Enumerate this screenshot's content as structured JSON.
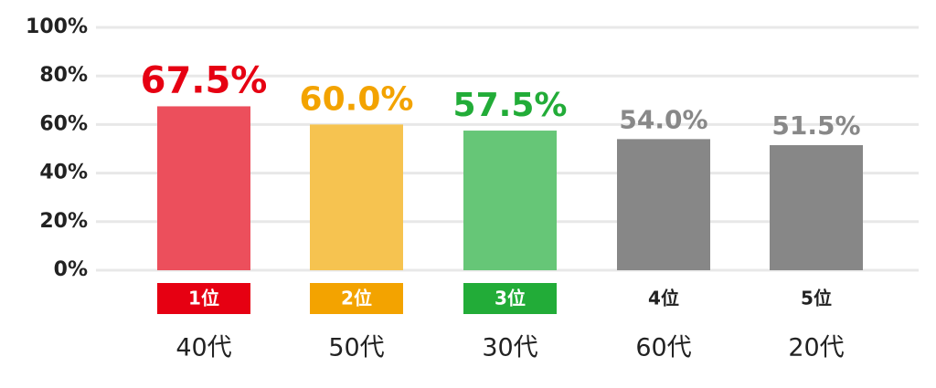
{
  "chart_data": {
    "type": "bar",
    "categories": [
      "40代",
      "50代",
      "30代",
      "60代",
      "20代"
    ],
    "values": [
      67.5,
      60.0,
      57.5,
      54.0,
      51.5
    ],
    "value_labels": [
      "67.5%",
      "60.0%",
      "57.5%",
      "54.0%",
      "51.5%"
    ],
    "colors": [
      "#ec4f5c",
      "#f6c350",
      "#66c677",
      "#878787",
      "#878787"
    ],
    "label_colors": [
      "#e60012",
      "#f3a300",
      "#22ac38",
      "#888888",
      "#888888"
    ],
    "rank_labels": [
      "1位",
      "2位",
      "3位",
      "4位",
      "5位"
    ],
    "rank_colors": [
      "#e60012",
      "#f3a300",
      "#22ac38",
      null,
      null
    ],
    "ylim": [
      0,
      100
    ],
    "yticks": [
      {
        "value": 0,
        "label": "0%"
      },
      {
        "value": 20,
        "label": "20%"
      },
      {
        "value": 40,
        "label": "40%"
      },
      {
        "value": 60,
        "label": "60%"
      },
      {
        "value": 80,
        "label": "80%"
      },
      {
        "value": 100,
        "label": "100%"
      }
    ],
    "grid": true
  }
}
